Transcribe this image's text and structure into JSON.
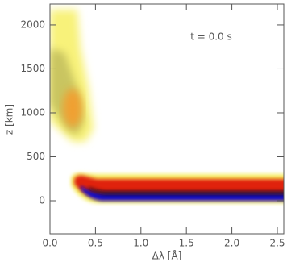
{
  "chart_data": {
    "type": "image",
    "xlabel": "Δλ [Å]",
    "ylabel": "z [km]",
    "annotation": "t = 0.0 s",
    "xlim": [
      0,
      2.571
    ],
    "ylim": [
      -376,
      2238
    ],
    "xticks": [
      {
        "value": 0,
        "label": "0.0"
      },
      {
        "value": 0.5,
        "label": "0.5"
      },
      {
        "value": 1,
        "label": "1.0"
      },
      {
        "value": 1.5,
        "label": "1.5"
      },
      {
        "value": 2,
        "label": "2.0"
      },
      {
        "value": 2.5,
        "label": "2.5"
      }
    ],
    "yticks": [
      0,
      500,
      1000,
      1500,
      2000
    ]
  }
}
